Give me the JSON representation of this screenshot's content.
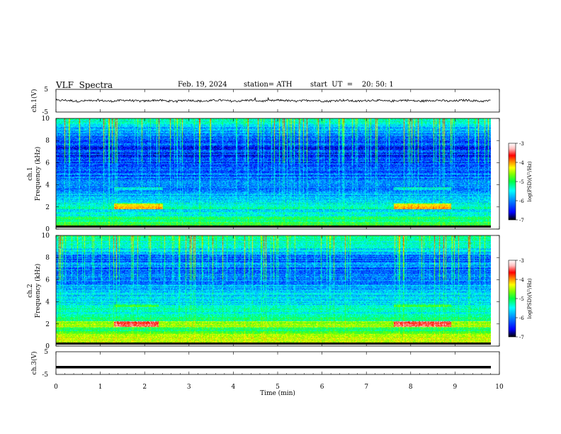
{
  "header": {
    "title": "VLF  Spectra",
    "date": "Feb. 19, 2024",
    "station": "station= ATH",
    "start_ut": "start  UT  =    20: 50: 1"
  },
  "chart_data": [
    {
      "type": "line",
      "panel": "ch1-waveform",
      "ylabel": "ch.1(V)",
      "ylim": [
        -5,
        5
      ],
      "yticks": [
        "5",
        "-5"
      ],
      "x_range_min": [
        0,
        9.8
      ],
      "description_level": "signal around 0 V with small fluctuations"
    },
    {
      "type": "heatmap",
      "panel": "ch1-spectrogram",
      "ylabel": "ch.1\nFrequency  (kHz)",
      "ylabel_line1": "ch.1",
      "ylabel_line2": "Frequency  (kHz)",
      "ylim": [
        0,
        10
      ],
      "yticks": [
        "0",
        "2",
        "4",
        "6",
        "8",
        "10"
      ],
      "colorbar": {
        "label": "log(PSD)(V²/Hz)",
        "range": [
          -7,
          -3
        ],
        "ticks": [
          "-3",
          "-4",
          "-5",
          "-6",
          "-7"
        ]
      },
      "enhanced_bands_min": [
        [
          1.3,
          2.4
        ],
        [
          7.6,
          8.9
        ]
      ],
      "enhanced_band_freq_khz": 2.1
    },
    {
      "type": "heatmap",
      "panel": "ch2-spectrogram",
      "ylabel_line1": "ch.2",
      "ylabel_line2": "Frequency  (kHz)",
      "ylim": [
        0,
        10
      ],
      "yticks": [
        "0",
        "2",
        "4",
        "6",
        "8",
        "10"
      ],
      "colorbar": {
        "label": "log(PSD)(V²/Hz)",
        "range": [
          -7,
          -3
        ],
        "ticks": [
          "-3",
          "-4",
          "-5",
          "-6",
          "-7"
        ]
      },
      "enhanced_bands_min": [
        [
          1.3,
          2.3
        ],
        [
          7.6,
          8.9
        ]
      ],
      "enhanced_band_freq_khz": 2.0
    },
    {
      "type": "line",
      "panel": "ch3-waveform",
      "ylabel": "ch.3(V)",
      "ylim": [
        -5,
        5
      ],
      "yticks": [
        "5",
        "-5"
      ],
      "level": -1.8
    }
  ],
  "xaxis": {
    "label": "Time  (min)",
    "range": [
      0,
      10
    ],
    "ticks": [
      "0",
      "1",
      "2",
      "3",
      "4",
      "5",
      "6",
      "7",
      "8",
      "9",
      "10"
    ]
  },
  "colors": {
    "colormap": [
      "#000000",
      "#0000ff",
      "#0088ff",
      "#00ffff",
      "#00ff66",
      "#66ff00",
      "#ffff00",
      "#ff8800",
      "#ff0000",
      "#ffd0d0",
      "#ffffff"
    ]
  }
}
